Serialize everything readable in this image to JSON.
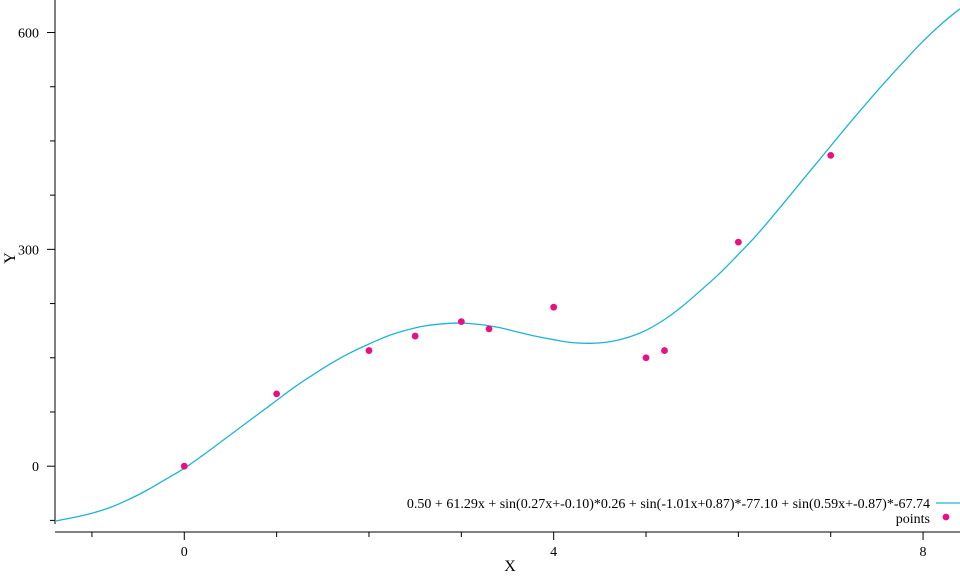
{
  "chart_data": {
    "type": "scatter",
    "title": "",
    "xlabel": "X",
    "ylabel": "Y",
    "xlim": [
      -1.4,
      8.4
    ],
    "ylim": [
      -80,
      645
    ],
    "xticks": [
      0,
      4,
      8
    ],
    "xminor": [
      -1,
      1,
      2,
      3,
      5,
      6,
      7
    ],
    "yticks": [
      0,
      300,
      600
    ],
    "grid": false,
    "legend_position": "bottom-right",
    "colors": {
      "curve": "#1cb4d6",
      "points": "#e8117f"
    },
    "series": [
      {
        "name": "0.50 + 61.29x + sin(0.27x+-0.10)*0.26 + sin(-1.01x+0.87)*-77.10 + sin(0.59x+-0.87)*-67.74",
        "kind": "line",
        "x": [
          -1.4,
          -1.2,
          -1.0,
          -0.8,
          -0.6,
          -0.4,
          -0.2,
          0.0,
          0.2,
          0.4,
          0.6,
          0.8,
          1.0,
          1.2,
          1.4,
          1.6,
          1.8,
          2.0,
          2.2,
          2.4,
          2.6,
          2.8,
          3.0,
          3.2,
          3.4,
          3.6,
          3.8,
          4.0,
          4.2,
          4.4,
          4.6,
          4.8,
          5.0,
          5.2,
          5.4,
          5.6,
          5.8,
          6.0,
          6.2,
          6.4,
          6.6,
          6.8,
          7.0,
          7.2,
          7.4,
          7.6,
          7.8,
          8.0,
          8.2,
          8.4
        ],
        "y": [
          -76,
          -71,
          -65,
          -57,
          -46,
          -33,
          -18,
          -3,
          15,
          34,
          53,
          72,
          91,
          110,
          127,
          143,
          157,
          169,
          180,
          188,
          194,
          197,
          198,
          196,
          192,
          186,
          180,
          175,
          171,
          170,
          172,
          178,
          188,
          203,
          222,
          244,
          267,
          293,
          320,
          350,
          381,
          412,
          443,
          474,
          504,
          533,
          561,
          588,
          612,
          633
        ]
      },
      {
        "name": "points",
        "kind": "scatter",
        "x": [
          0,
          1,
          2,
          2.5,
          3,
          3.3,
          4,
          5,
          5.2,
          6,
          7
        ],
        "y": [
          0,
          100,
          160,
          180,
          200,
          190,
          220,
          150,
          160,
          310,
          430
        ]
      }
    ]
  }
}
